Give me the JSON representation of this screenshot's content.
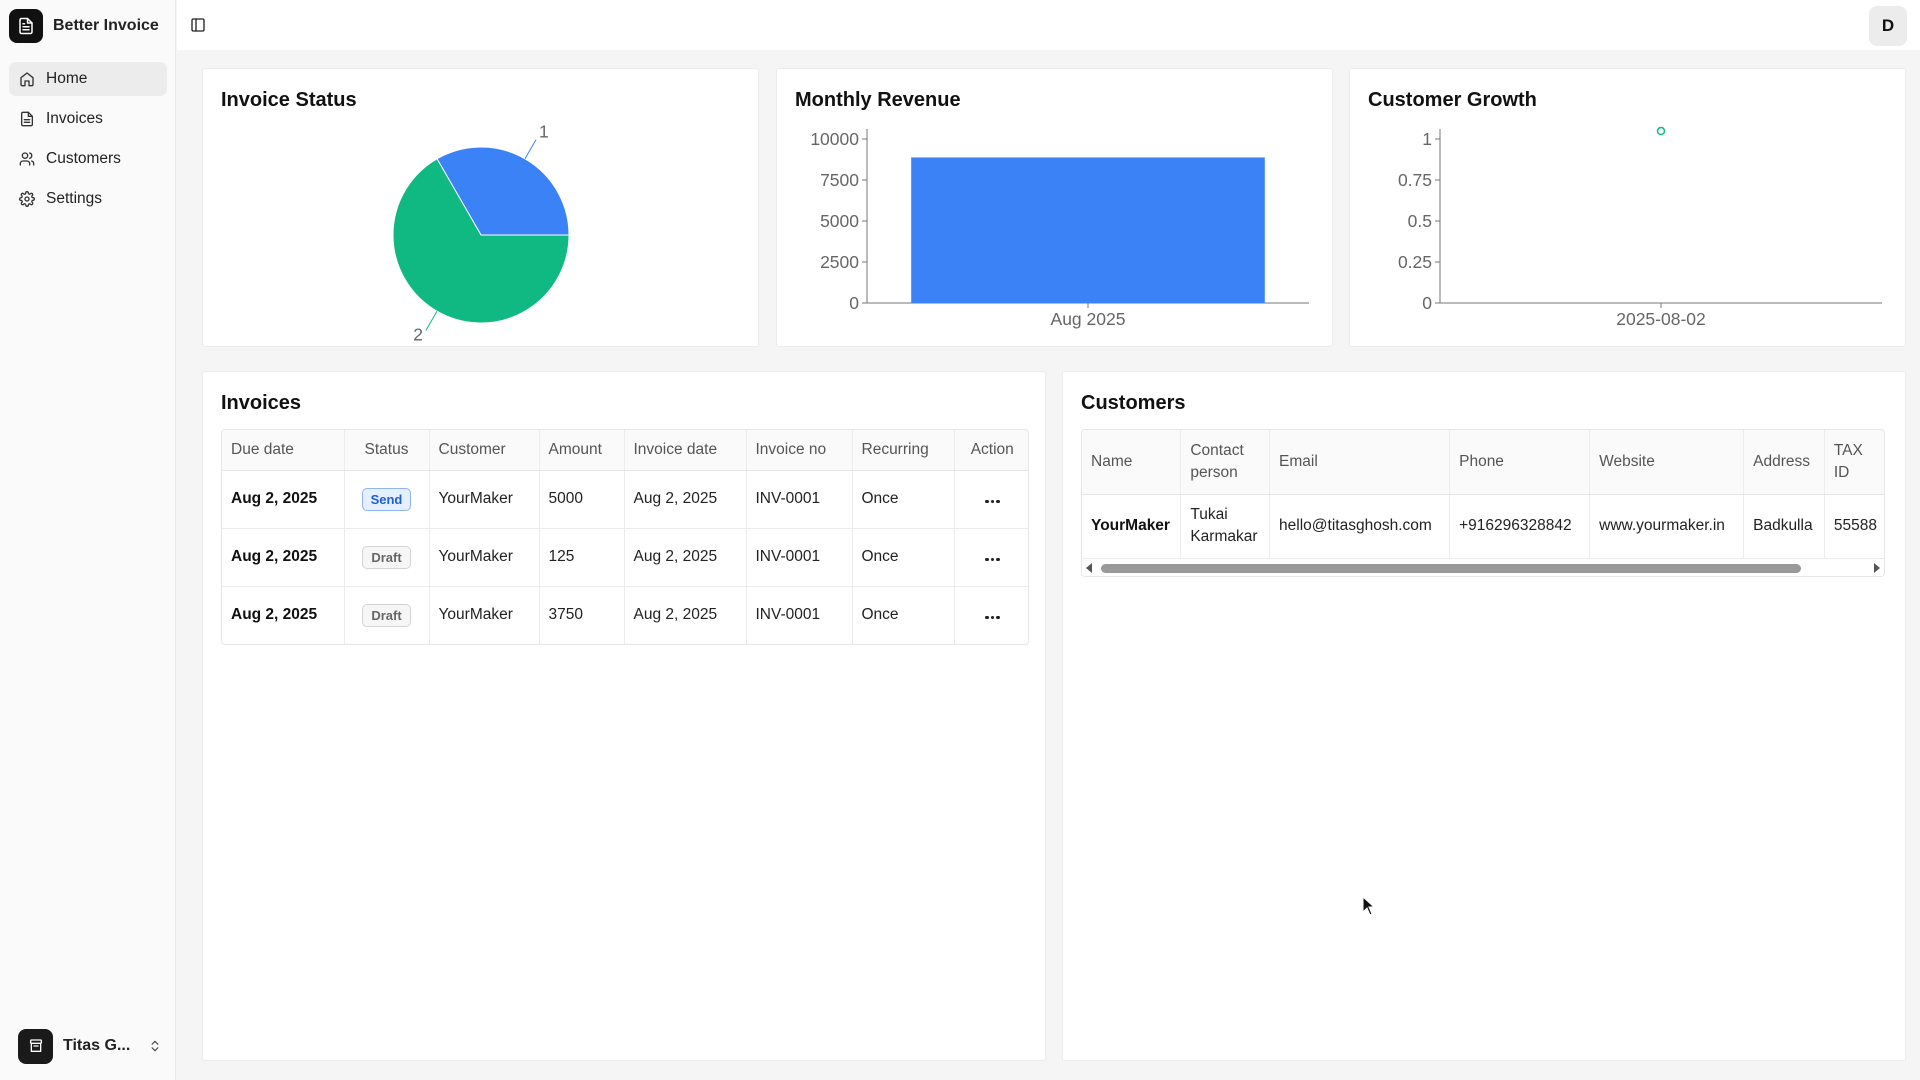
{
  "app": {
    "name": "Better Invoice",
    "logo_icon": "file-text-icon"
  },
  "sidebar": {
    "items": [
      {
        "label": "Home",
        "icon": "home-icon",
        "active": true
      },
      {
        "label": "Invoices",
        "icon": "file-icon",
        "active": false
      },
      {
        "label": "Customers",
        "icon": "users-icon",
        "active": false
      },
      {
        "label": "Settings",
        "icon": "gear-icon",
        "active": false
      }
    ],
    "user": {
      "name": "Titas G...",
      "icon": "archive-icon"
    }
  },
  "header": {
    "avatar_letter": "D",
    "toggle_icon": "sidebar-toggle-icon"
  },
  "colors": {
    "blue": "#3b82f6",
    "green": "#10b981"
  },
  "charts": {
    "invoice_status": {
      "title": "Invoice Status"
    },
    "monthly_revenue": {
      "title": "Monthly Revenue"
    },
    "customer_growth": {
      "title": "Customer Growth"
    }
  },
  "chart_data": [
    {
      "type": "pie",
      "title": "Invoice Status",
      "slices": [
        {
          "value": 1,
          "label": "1",
          "color": "#3b82f6"
        },
        {
          "value": 2,
          "label": "2",
          "color": "#10b981"
        }
      ]
    },
    {
      "type": "bar",
      "title": "Monthly Revenue",
      "categories": [
        "Aug 2025"
      ],
      "values": [
        8875
      ],
      "ylim": [
        0,
        10000
      ],
      "yticks": [
        "0",
        "2500",
        "5000",
        "7500",
        "10000"
      ],
      "color": "#3b82f6"
    },
    {
      "type": "line",
      "title": "Customer Growth",
      "x": [
        "2025-08-02"
      ],
      "y": [
        1
      ],
      "ylim": [
        0,
        1
      ],
      "yticks": [
        "0",
        "0.25",
        "0.5",
        "0.75",
        "1"
      ],
      "color": "#10b981"
    }
  ],
  "invoices": {
    "title": "Invoices",
    "headers": [
      "Due date",
      "Status",
      "Customer",
      "Amount",
      "Invoice date",
      "Invoice no",
      "Recurring",
      "Action"
    ],
    "rows": [
      {
        "due": "Aug 2, 2025",
        "status": "Send",
        "customer": "YourMaker",
        "amount": "5000",
        "date": "Aug 2, 2025",
        "no": "INV-0001",
        "recurring": "Once"
      },
      {
        "due": "Aug 2, 2025",
        "status": "Draft",
        "customer": "YourMaker",
        "amount": "125",
        "date": "Aug 2, 2025",
        "no": "INV-0001",
        "recurring": "Once"
      },
      {
        "due": "Aug 2, 2025",
        "status": "Draft",
        "customer": "YourMaker",
        "amount": "3750",
        "date": "Aug 2, 2025",
        "no": "INV-0001",
        "recurring": "Once"
      }
    ]
  },
  "customers": {
    "title": "Customers",
    "headers": [
      "Name",
      "Contact person",
      "Email",
      "Phone",
      "Website",
      "Address",
      "TAX ID"
    ],
    "rows": [
      {
        "name": "YourMaker",
        "contact": "Tukai Karmakar",
        "email": "hello@titasghosh.com",
        "phone": "+916296328842",
        "website": "www.yourmaker.in",
        "address": "Badkulla",
        "tax": "55588"
      }
    ]
  }
}
